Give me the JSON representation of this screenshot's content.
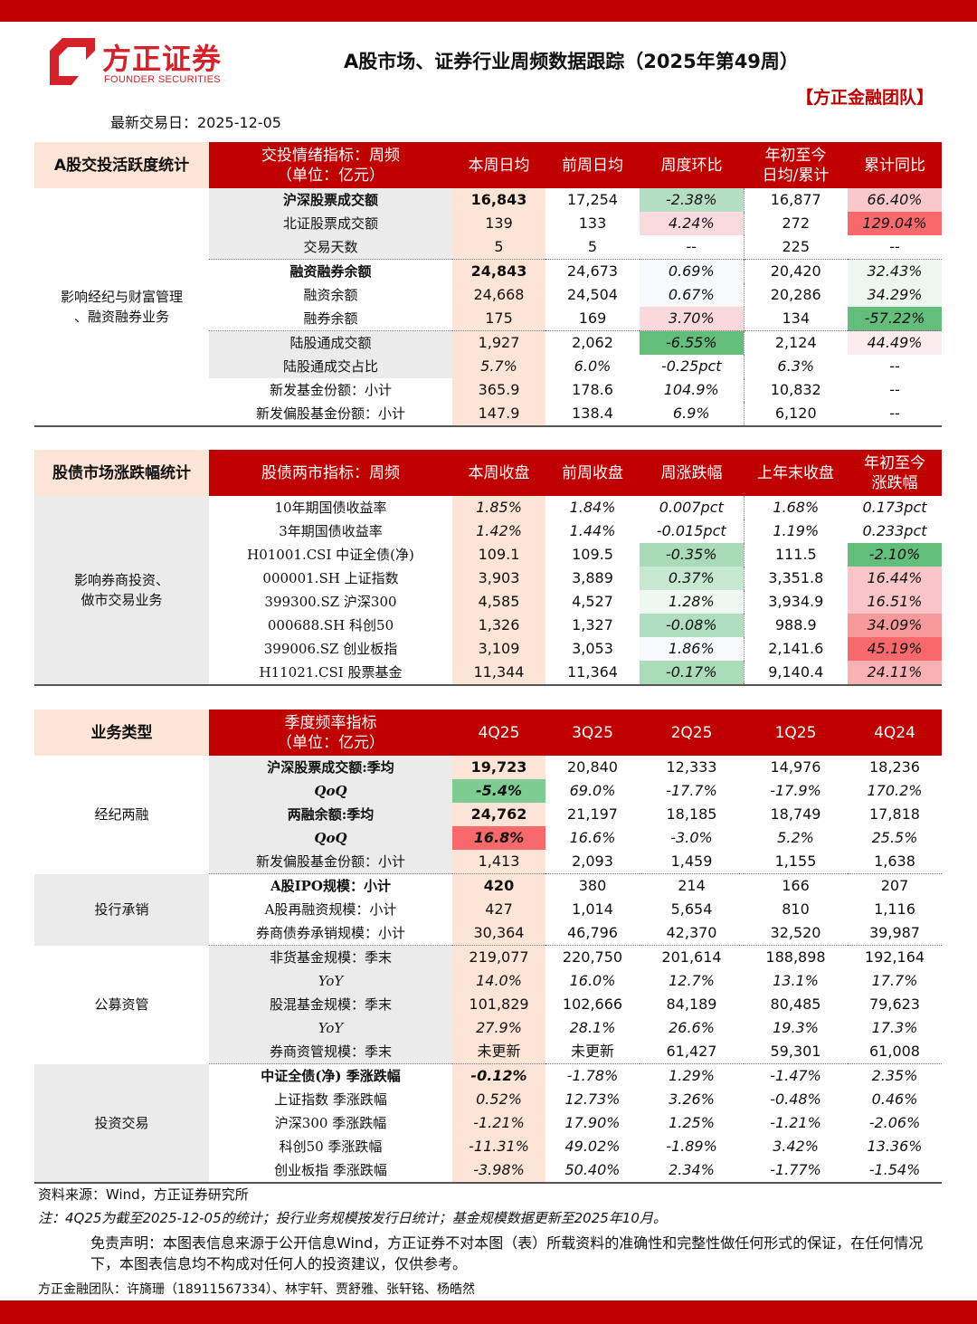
{
  "header": {
    "logo_cn": "方正证券",
    "logo_en": "FOUNDER SECURITIES",
    "title": "A股市场、证券行业周频数据跟踪（2025年第49周）",
    "team": "【方正金融团队】",
    "date_label": "最新交易日：2025-12-05"
  },
  "colors": {
    "brand": "#c00000",
    "header_cell": "#fce4d6",
    "grey": "#ebebeb"
  },
  "tables": [
    {
      "cat_header": "A股交投活跃度统计",
      "headers": [
        "交投情绪指标：周频\n（单位：亿元）",
        "本周日均",
        "前周日均",
        "周度环比",
        "年初至今\n日均/累计",
        "累计同比"
      ],
      "groups": [
        {
          "label": "影响经纪与财富管理\n、融资融券业务",
          "rows": [
            {
              "cells": [
                "沪深股票成交额",
                "16,843",
                "17,254",
                "-2.38%",
                "16,877",
                "66.40%"
              ],
              "bg": [
                null,
                null,
                null,
                "#b5dfc2",
                null,
                "#f9c8cc"
              ],
              "bold": true,
              "grey": true
            },
            {
              "cells": [
                "北证股票成交额",
                "139",
                "133",
                "4.24%",
                "272",
                "129.04%"
              ],
              "bg": [
                null,
                null,
                null,
                "#fbdade",
                null,
                "#f8696b"
              ],
              "grey": true
            },
            {
              "cells": [
                "交易天数",
                "5",
                "5",
                "--",
                "225",
                "--"
              ],
              "grey": true
            },
            {
              "cells": [
                "融资融券余额",
                "24,843",
                "24,673",
                "0.69%",
                "20,420",
                "32.43%"
              ],
              "bg": [
                null,
                null,
                null,
                "#f8f9fc",
                null,
                "#eef6f2"
              ],
              "bold": true,
              "sep": true
            },
            {
              "cells": [
                "融资余额",
                "24,668",
                "24,504",
                "0.67%",
                "20,286",
                "34.29%"
              ],
              "bg": [
                null,
                null,
                null,
                "#f8f9fc",
                null,
                "#eef6f2"
              ]
            },
            {
              "cells": [
                "融券余额",
                "175",
                "169",
                "3.70%",
                "134",
                "-57.22%"
              ],
              "bg": [
                null,
                null,
                null,
                "#fad9dc",
                null,
                "#63be7b"
              ]
            },
            {
              "cells": [
                "陆股通成交额",
                "1,927",
                "2,062",
                "-6.55%",
                "2,124",
                "44.49%"
              ],
              "bg": [
                null,
                null,
                null,
                "#63be7b",
                null,
                "#fcecee"
              ],
              "grey": true,
              "sep": true
            },
            {
              "cells": [
                "陆股通成交占比",
                "5.7%",
                "6.0%",
                "-0.25pct",
                "6.3%",
                "--"
              ],
              "grey": true
            },
            {
              "cells": [
                "新发基金份额：小计",
                "365.9",
                "178.6",
                "104.9%",
                "10,832",
                "--"
              ]
            },
            {
              "cells": [
                "新发偏股基金份额：小计",
                "147.9",
                "138.4",
                "6.9%",
                "6,120",
                "--"
              ]
            }
          ]
        }
      ]
    },
    {
      "cat_header": "股债市场涨跌幅统计",
      "headers": [
        "股债两市指标：周频",
        "本周收盘",
        "前周收盘",
        "周涨跌幅",
        "上年末收盘",
        "年初至今\n涨跌幅"
      ],
      "groups": [
        {
          "label": "影响券商投资、\n做市交易业务",
          "catgrey": true,
          "rows": [
            {
              "cells": [
                "10年期国债收益率",
                "1.85%",
                "1.84%",
                "0.007pct",
                "1.68%",
                "0.173pct"
              ]
            },
            {
              "cells": [
                "3年期国债收益率",
                "1.42%",
                "1.44%",
                "-0.015pct",
                "1.19%",
                "0.233pct"
              ]
            },
            {
              "cells": [
                "H01001.CSI 中证全债(净)",
                "109.1",
                "109.5",
                "-0.35%",
                "111.5",
                "-2.10%"
              ],
              "bg": [
                null,
                null,
                null,
                "#a9dbb8",
                null,
                "#63be7b"
              ]
            },
            {
              "cells": [
                "000001.SH 上证指数",
                "3,903",
                "3,889",
                "0.37%",
                "3,351.8",
                "16.44%"
              ],
              "bg": [
                null,
                null,
                null,
                "#c6e8d1",
                null,
                "#f9c5c9"
              ]
            },
            {
              "cells": [
                "399300.SZ 沪深300",
                "4,585",
                "4,527",
                "1.28%",
                "3,934.9",
                "16.51%"
              ],
              "bg": [
                null,
                null,
                null,
                "#eef7f1",
                null,
                "#f9c5c9"
              ]
            },
            {
              "cells": [
                "000688.SH 科创50",
                "1,326",
                "1,327",
                "-0.08%",
                "988.9",
                "34.09%"
              ],
              "bg": [
                null,
                null,
                null,
                "#b0dfbf",
                null,
                "#f8999b"
              ]
            },
            {
              "cells": [
                "399006.SZ 创业板指",
                "3,109",
                "3,053",
                "1.86%",
                "2,141.6",
                "45.19%"
              ],
              "bg": [
                null,
                null,
                null,
                "#f8f9fc",
                null,
                "#f8696b"
              ]
            },
            {
              "cells": [
                "H11021.CSI 股票基金",
                "11,344",
                "11,364",
                "-0.17%",
                "9,140.4",
                "24.11%"
              ],
              "bg": [
                null,
                null,
                null,
                "#abdcb9",
                null,
                "#f9b1b4"
              ]
            }
          ]
        }
      ]
    },
    {
      "cat_header": "业务类型",
      "headers": [
        "季度频率指标\n（单位：亿元）",
        "4Q25",
        "3Q25",
        "2Q25",
        "1Q25",
        "4Q24"
      ],
      "groups": [
        {
          "label": "经纪两融",
          "rows": [
            {
              "cells": [
                "沪深股票成交额:季均",
                "19,723",
                "20,840",
                "12,333",
                "14,976",
                "18,236"
              ],
              "bold": true,
              "grey": true
            },
            {
              "cells": [
                "QoQ",
                "-5.4%",
                "69.0%",
                "-17.7%",
                "-17.9%",
                "170.2%"
              ],
              "bg": [
                null,
                "#7fcc93",
                null,
                null,
                null,
                null
              ],
              "bold": true,
              "grey": true
            },
            {
              "cells": [
                "两融余额:季均",
                "24,762",
                "21,197",
                "18,185",
                "18,749",
                "17,818"
              ],
              "bold": true,
              "grey": true
            },
            {
              "cells": [
                "QoQ",
                "16.8%",
                "16.6%",
                "-3.0%",
                "5.2%",
                "25.5%"
              ],
              "bg": [
                null,
                "#f8696b",
                null,
                null,
                null,
                null
              ],
              "bold": true,
              "grey": true
            },
            {
              "cells": [
                "新发偏股基金份额：小计",
                "1,413",
                "2,093",
                "1,459",
                "1,155",
                "1,638"
              ],
              "grey": true
            }
          ]
        },
        {
          "label": "投行承销",
          "catgrey": true,
          "rows": [
            {
              "cells": [
                "A股IPO规模：小计",
                "420",
                "380",
                "214",
                "166",
                "207"
              ],
              "bold": true,
              "sep": true
            },
            {
              "cells": [
                "A股再融资规模：小计",
                "427",
                "1,014",
                "5,654",
                "810",
                "1,116"
              ]
            },
            {
              "cells": [
                "券商债券承销规模：小计",
                "30,364",
                "46,796",
                "42,370",
                "32,520",
                "39,987"
              ]
            }
          ]
        },
        {
          "label": "公募资管",
          "rows": [
            {
              "cells": [
                "非货基金规模：季末",
                "219,077",
                "220,750",
                "201,614",
                "188,898",
                "192,164"
              ],
              "grey": true,
              "sep": true
            },
            {
              "cells": [
                "YoY",
                "14.0%",
                "16.0%",
                "12.7%",
                "13.1%",
                "17.7%"
              ],
              "grey": true
            },
            {
              "cells": [
                "股混基金规模：季末",
                "101,829",
                "102,666",
                "84,189",
                "80,485",
                "79,623"
              ],
              "grey": true
            },
            {
              "cells": [
                "YoY",
                "27.9%",
                "28.1%",
                "26.6%",
                "19.3%",
                "17.3%"
              ],
              "grey": true
            },
            {
              "cells": [
                "券商资管规模：季末",
                "未更新",
                "未更新",
                "61,427",
                "59,301",
                "61,008"
              ],
              "grey": true
            }
          ]
        },
        {
          "label": "投资交易",
          "catgrey": true,
          "rows": [
            {
              "cells": [
                "中证全债(净) 季涨跌幅",
                "-0.12%",
                "-1.78%",
                "1.29%",
                "-1.47%",
                "2.35%"
              ],
              "bold": true,
              "sep": true
            },
            {
              "cells": [
                "上证指数 季涨跌幅",
                "0.52%",
                "12.73%",
                "3.26%",
                "-0.48%",
                "0.46%"
              ]
            },
            {
              "cells": [
                "沪深300 季涨跌幅",
                "-1.21%",
                "17.90%",
                "1.25%",
                "-1.21%",
                "-2.06%"
              ]
            },
            {
              "cells": [
                "科创50 季涨跌幅",
                "-11.31%",
                "49.02%",
                "-1.89%",
                "3.42%",
                "13.36%"
              ]
            },
            {
              "cells": [
                "创业板指 季涨跌幅",
                "-3.98%",
                "50.40%",
                "2.34%",
                "-1.77%",
                "-1.54%"
              ]
            }
          ]
        }
      ]
    }
  ],
  "footer": {
    "source": "资料来源：Wind，方正证券研究所",
    "note": "注：4Q25为截至2025-12-05的统计；投行业务规模按发行日统计；基金规模数据更新至2025年10月。",
    "disclaimer": "免责声明：本图表信息来源于公开信息Wind，方正证券不对本图（表）所载资料的准确性和完整性做任何形式的保证，在任何情况下，本图表信息均不构成对任何人的投资建议，仅供参考。",
    "team": "方正金融团队：许旖珊（18911567334）、林宇轩、贾舒雅、张轩铭、杨皓然"
  }
}
